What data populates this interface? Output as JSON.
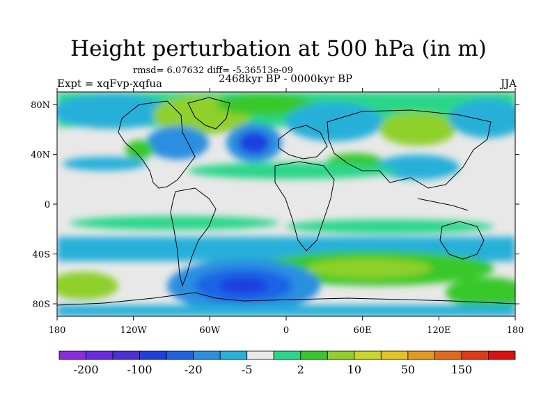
{
  "title": "Height perturbation at 500 hPa (in m)",
  "stats": "rmsd= 6.07632 diff= -5.36513e-09",
  "experiment": "Expt = xqFvp-xqfua",
  "period": "2468kyr BP - 0000kyr BP",
  "season": "JJA",
  "map": {
    "projection": "cylindrical-equidistant",
    "lon_range": [
      -180,
      180
    ],
    "lat_range": [
      -90,
      90
    ],
    "lon_ticks": [
      {
        "value": -180,
        "label": "180"
      },
      {
        "value": -120,
        "label": "120W"
      },
      {
        "value": -60,
        "label": "60W"
      },
      {
        "value": 0,
        "label": "0"
      },
      {
        "value": 60,
        "label": "60E"
      },
      {
        "value": 120,
        "label": "120E"
      },
      {
        "value": 180,
        "label": "180"
      }
    ],
    "lat_ticks": [
      {
        "value": 80,
        "label": "80N"
      },
      {
        "value": 40,
        "label": "40N"
      },
      {
        "value": 0,
        "label": "0"
      },
      {
        "value": -40,
        "label": "40S"
      },
      {
        "value": -80,
        "label": "80S"
      }
    ]
  },
  "colorbar": {
    "colors": [
      "#8a2be2",
      "#6a2be5",
      "#4b30d6",
      "#1e3fe0",
      "#1f63e5",
      "#2b8fe0",
      "#27b0d9",
      "#e8e8e8",
      "#2ad68a",
      "#39c82a",
      "#8fd02b",
      "#c9d527",
      "#e3c322",
      "#e39a1f",
      "#e06a1a",
      "#e03a14",
      "#e00f0f"
    ],
    "labels": [
      "-200",
      "-100",
      "-20",
      "-5",
      "2",
      "10",
      "50",
      "150"
    ],
    "label_boundaries": [
      1,
      3,
      5,
      7,
      9,
      11,
      13,
      15
    ]
  }
}
